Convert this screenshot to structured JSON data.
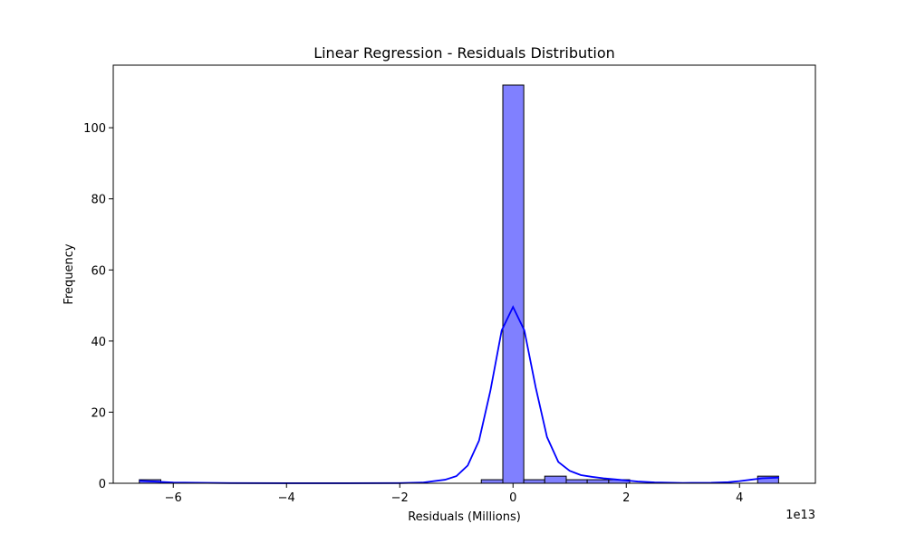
{
  "chart_data": {
    "type": "bar",
    "title": "Linear Regression - Residuals Distribution",
    "xlabel": "Residuals (Millions)",
    "ylabel": "Frequency",
    "x_offset_label": "1e13",
    "xlim": [
      -7.06,
      5.34
    ],
    "ylim": [
      0,
      117.6
    ],
    "x_ticks": [
      -6,
      -4,
      -2,
      0,
      2,
      4
    ],
    "x_tick_labels": [
      "−6",
      "−4",
      "−2",
      "0",
      "2",
      "4"
    ],
    "y_ticks": [
      0,
      20,
      40,
      60,
      80,
      100
    ],
    "y_tick_labels": [
      "0",
      "20",
      "40",
      "60",
      "80",
      "100"
    ],
    "grid": false,
    "histogram": {
      "bins": [
        {
          "x0": -6.6,
          "x1": -6.22,
          "count": 1
        },
        {
          "x0": -0.56,
          "x1": -0.18,
          "count": 1
        },
        {
          "x0": -0.18,
          "x1": 0.19,
          "count": 112
        },
        {
          "x0": 0.19,
          "x1": 0.56,
          "count": 1
        },
        {
          "x0": 0.56,
          "x1": 0.94,
          "count": 2
        },
        {
          "x0": 0.94,
          "x1": 1.31,
          "count": 1
        },
        {
          "x0": 1.31,
          "x1": 1.69,
          "count": 1
        },
        {
          "x0": 1.69,
          "x1": 2.06,
          "count": 1
        },
        {
          "x0": 4.32,
          "x1": 4.69,
          "count": 2
        }
      ],
      "fill_color": "#8080ff",
      "edge_color": "#000000"
    },
    "kde": {
      "color": "#0000ff",
      "x": [
        -6.6,
        -6.0,
        -5.0,
        -4.0,
        -3.0,
        -2.0,
        -1.6,
        -1.2,
        -1.0,
        -0.8,
        -0.6,
        -0.4,
        -0.2,
        0.0,
        0.2,
        0.4,
        0.6,
        0.8,
        1.0,
        1.2,
        1.4,
        1.6,
        1.8,
        2.0,
        2.2,
        2.5,
        3.0,
        3.5,
        3.8,
        4.0,
        4.2,
        4.4,
        4.7
      ],
      "y": [
        0.7,
        0.2,
        0.05,
        0.02,
        0.02,
        0.05,
        0.2,
        1.0,
        2.0,
        5.0,
        12.0,
        26.0,
        43.0,
        49.6,
        43.0,
        27.0,
        13.0,
        6.0,
        3.5,
        2.3,
        1.8,
        1.4,
        1.1,
        0.8,
        0.5,
        0.25,
        0.1,
        0.15,
        0.3,
        0.6,
        1.0,
        1.4,
        1.6
      ]
    }
  }
}
